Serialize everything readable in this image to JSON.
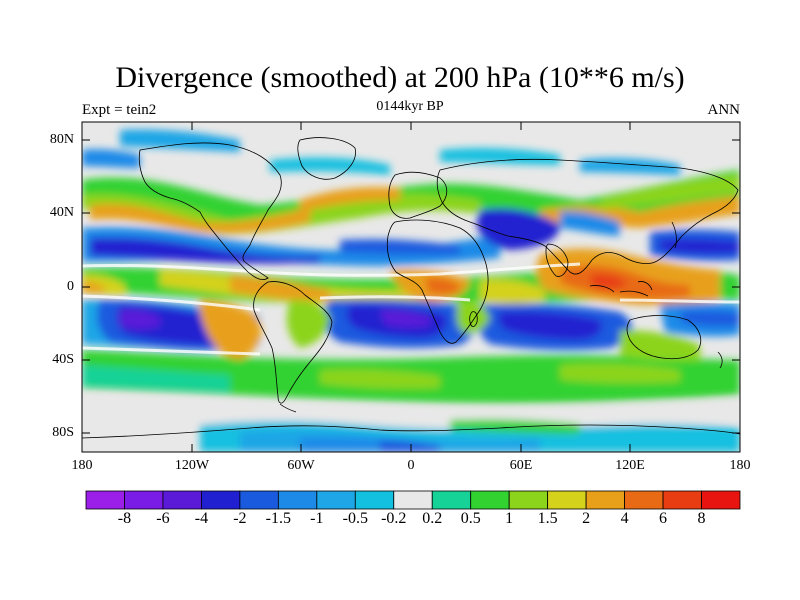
{
  "title": "Divergence (smoothed) at 200 hPa (10**6 m/s)",
  "experiment": "Expt = tein2",
  "period": "0144kyr BP",
  "season": "ANN",
  "lat_labels": [
    "80N",
    "40N",
    "0",
    "40S",
    "80S"
  ],
  "lon_labels": [
    "180",
    "120W",
    "60W",
    "0",
    "60E",
    "120E",
    "180"
  ],
  "colorbar": {
    "labels": [
      "-8",
      "-6",
      "-4",
      "-2",
      "-1.5",
      "-1",
      "-0.5",
      "-0.2",
      "0.2",
      "0.5",
      "1",
      "1.5",
      "2",
      "4",
      "6",
      "8"
    ],
    "colors": [
      "#9b1fe8",
      "#7a1ce6",
      "#5a1ad8",
      "#2020d0",
      "#1a5adf",
      "#1e8ae8",
      "#1ea6e6",
      "#14c0e0",
      "#e8e8e8",
      "#16d296",
      "#32d230",
      "#8cd41c",
      "#d4d21a",
      "#e8a01a",
      "#e86a14",
      "#e83c12",
      "#e81410"
    ]
  }
}
